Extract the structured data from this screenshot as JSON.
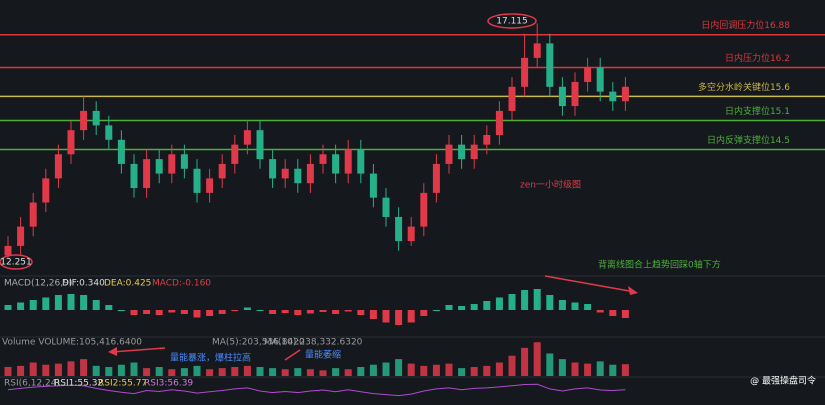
{
  "chart_data": {
    "type": "candlestick",
    "title": "zen一小时级图",
    "ylim": [
      12.0,
      17.6
    ],
    "up_color": "#e0394a",
    "down_color": "#26b08a",
    "open": [
      12.3,
      12.5,
      12.9,
      13.4,
      13.9,
      14.4,
      14.9,
      15.3,
      15.0,
      14.7,
      14.2,
      13.7,
      14.3,
      14.0,
      14.4,
      14.1,
      13.6,
      13.9,
      14.2,
      14.6,
      14.9,
      14.3,
      13.9,
      14.1,
      13.8,
      14.2,
      14.4,
      14.0,
      14.5,
      14.0,
      13.5,
      13.1,
      12.6,
      12.9,
      13.6,
      14.2,
      14.6,
      14.3,
      14.6,
      14.8,
      15.3,
      15.8,
      16.4,
      16.7,
      15.8,
      15.4,
      15.9,
      16.2,
      15.7,
      15.5
    ],
    "close": [
      12.5,
      12.9,
      13.4,
      13.9,
      14.4,
      14.9,
      15.3,
      15.0,
      14.7,
      14.2,
      13.7,
      14.3,
      14.0,
      14.4,
      14.1,
      13.6,
      13.9,
      14.2,
      14.6,
      14.9,
      14.3,
      13.9,
      14.1,
      13.8,
      14.2,
      14.4,
      14.0,
      14.5,
      14.0,
      13.5,
      13.1,
      12.6,
      12.9,
      13.6,
      14.2,
      14.6,
      14.3,
      14.6,
      14.8,
      15.3,
      15.8,
      16.4,
      16.7,
      15.8,
      15.4,
      15.9,
      16.2,
      15.7,
      15.5,
      15.8
    ],
    "high": [
      12.7,
      13.1,
      13.6,
      14.1,
      14.6,
      15.1,
      15.6,
      15.5,
      15.2,
      14.9,
      14.4,
      14.5,
      14.5,
      14.6,
      14.6,
      14.3,
      14.1,
      14.4,
      14.8,
      15.1,
      15.1,
      14.5,
      14.3,
      14.3,
      14.4,
      14.6,
      14.6,
      14.7,
      14.7,
      14.2,
      13.7,
      13.3,
      13.1,
      13.8,
      14.4,
      14.8,
      14.8,
      14.8,
      15.0,
      15.5,
      16.0,
      16.9,
      17.115,
      16.9,
      16.0,
      16.1,
      16.4,
      16.4,
      15.9,
      16.0
    ],
    "low": [
      12.251,
      12.3,
      12.7,
      13.2,
      13.7,
      14.2,
      14.7,
      14.8,
      14.5,
      14.0,
      13.5,
      13.5,
      13.8,
      13.8,
      13.9,
      13.4,
      13.4,
      13.7,
      14.0,
      14.4,
      14.1,
      13.7,
      13.7,
      13.6,
      13.6,
      14.0,
      13.8,
      13.8,
      13.8,
      13.3,
      12.9,
      12.4,
      12.5,
      12.7,
      13.4,
      14.0,
      14.1,
      14.1,
      14.4,
      14.6,
      15.1,
      15.6,
      16.2,
      15.6,
      15.2,
      15.2,
      15.7,
      15.5,
      15.3,
      15.3
    ],
    "high_label": "17.115",
    "low_label": "12.251",
    "levels": [
      {
        "value": 16.88,
        "label": "日内回调压力位16.88",
        "color": "#d9363e"
      },
      {
        "value": 16.2,
        "label": "日内压力位16.2",
        "color": "#d9363e"
      },
      {
        "value": 15.6,
        "label": "多空分水岭关键位15.6",
        "color": "#c9b84a"
      },
      {
        "value": 15.1,
        "label": "日内支撑位15.1",
        "color": "#4caf3a"
      },
      {
        "value": 14.5,
        "label": "日内反弹支撑位14.5",
        "color": "#4caf3a"
      }
    ],
    "macd": {
      "labels": [
        "MACD(12,26,9)",
        "DIF:0.340",
        "DEA:0.425",
        "MACD:-0.160"
      ],
      "ylim": [
        -0.5,
        0.5
      ],
      "values": [
        0.1,
        0.15,
        0.2,
        0.25,
        0.3,
        0.32,
        0.3,
        0.2,
        0.1,
        0.0,
        -0.1,
        -0.08,
        -0.1,
        -0.05,
        -0.08,
        -0.15,
        -0.12,
        -0.08,
        -0.02,
        0.05,
        0.0,
        -0.08,
        -0.06,
        -0.1,
        -0.07,
        -0.04,
        -0.08,
        -0.03,
        -0.1,
        -0.18,
        -0.25,
        -0.3,
        -0.25,
        -0.12,
        0.0,
        0.1,
        0.08,
        0.12,
        0.18,
        0.25,
        0.32,
        0.4,
        0.42,
        0.3,
        0.2,
        0.15,
        0.12,
        -0.05,
        -0.12,
        -0.16
      ],
      "note": "背离线图合上趋势回踩0轴下方"
    },
    "volume": {
      "labels": [
        "Volume VOLUME:105,416.6400",
        "MA(5):203,536.8420",
        "MA(10):238,332.6320"
      ],
      "ylim": [
        0,
        320
      ],
      "values": [
        80,
        90,
        120,
        100,
        110,
        130,
        150,
        90,
        80,
        100,
        120,
        70,
        80,
        60,
        70,
        90,
        60,
        70,
        80,
        90,
        80,
        70,
        60,
        70,
        60,
        50,
        70,
        60,
        80,
        100,
        120,
        150,
        110,
        90,
        100,
        110,
        70,
        80,
        90,
        120,
        180,
        250,
        300,
        200,
        150,
        120,
        110,
        130,
        100,
        105
      ],
      "notes": [
        "量能暴涨，爆柱拉高",
        "量能萎缩"
      ]
    },
    "rsi": {
      "labels": [
        "RSI(6,12,24)",
        "RSI1:55.32",
        "RSI2:55.77",
        "RSI3:56.39"
      ],
      "ylim": [
        0,
        100
      ],
      "values": [
        55,
        60,
        65,
        68,
        70,
        72,
        70,
        60,
        52,
        45,
        40,
        52,
        48,
        55,
        50,
        42,
        47,
        52,
        58,
        62,
        50,
        44,
        48,
        44,
        50,
        54,
        47,
        55,
        47,
        40,
        36,
        32,
        38,
        50,
        58,
        62,
        55,
        60,
        62,
        66,
        70,
        75,
        76,
        58,
        50,
        58,
        62,
        54,
        52,
        55
      ]
    },
    "watermark": "@ 最强操盘司令"
  }
}
